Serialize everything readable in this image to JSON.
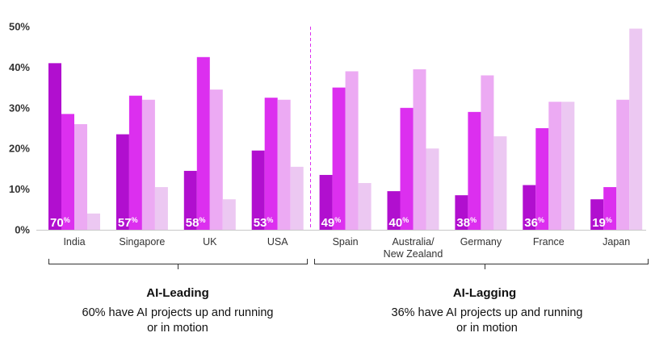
{
  "chart_data": {
    "type": "bar",
    "ylim": [
      0,
      50
    ],
    "yticks": [
      "0%",
      "10%",
      "20%",
      "30%",
      "40%",
      "50%"
    ],
    "categories": [
      "India",
      "Singapore",
      "UK",
      "USA",
      "Spain",
      "Australia/\nNew Zealand",
      "Germany",
      "France",
      "Japan"
    ],
    "series": [
      {
        "values": [
          41,
          23.5,
          14.5,
          19.5,
          13.5,
          9.5,
          8.5,
          11,
          7.5
        ]
      },
      {
        "values": [
          28.5,
          33,
          42.5,
          32.5,
          35,
          30,
          29,
          25,
          10.5
        ]
      },
      {
        "values": [
          26,
          32,
          34.5,
          32,
          39,
          39.5,
          38,
          31.5,
          32
        ]
      },
      {
        "values": [
          4,
          10.5,
          7.5,
          15.5,
          11.5,
          20,
          23,
          31.5,
          49.5
        ]
      }
    ],
    "badges": [
      "70%",
      "57%",
      "58%",
      "53%",
      "49%",
      "40%",
      "38%",
      "36%",
      "19%"
    ],
    "groups": [
      {
        "title": "AI-Leading",
        "subtitle_line1": "60% have AI projects up and running",
        "subtitle_line2": "or in motion"
      },
      {
        "title": "AI-Lagging",
        "subtitle_line1": "36% have AI projects up and running",
        "subtitle_line2": "or in motion"
      }
    ],
    "colors": [
      "#b10fcf",
      "#dc2fef",
      "#ecaaf3",
      "#ecc8f2"
    ],
    "divider_color": "#dc2fef",
    "grid": false
  }
}
